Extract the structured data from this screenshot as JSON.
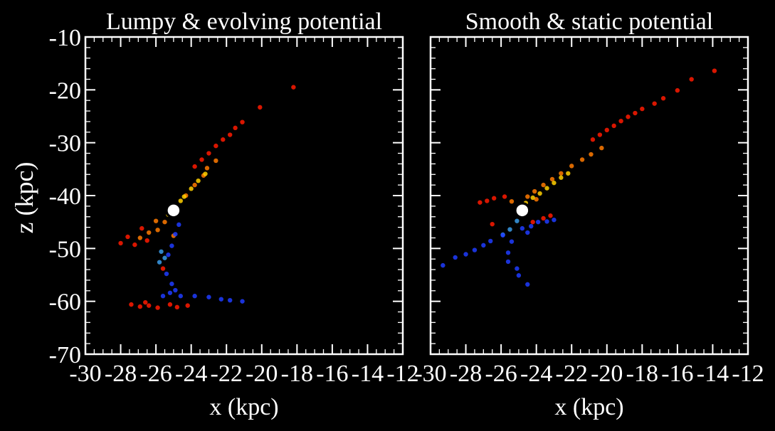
{
  "figure": {
    "background": "#000000",
    "ylabel": "z (kpc)"
  },
  "chart_data": [
    {
      "type": "scatter",
      "title": "Lumpy & evolving potential",
      "xlabel": "x (kpc)",
      "ylabel": "z (kpc)",
      "xlim": [
        -30,
        -12
      ],
      "ylim": [
        -70,
        -10
      ],
      "xticks": [
        "-30",
        "-28",
        "-26",
        "-24",
        "-22",
        "-20",
        "-18",
        "-16",
        "-14",
        "-12"
      ],
      "yticks": [
        "-10",
        "-20",
        "-30",
        "-40",
        "-50",
        "-60",
        "-70"
      ],
      "progenitor": {
        "x": -25.0,
        "z": -42.8
      },
      "series": [
        {
          "color": "#ff1a00",
          "points": [
            [
              -23.8,
              -34.5
            ],
            [
              -23.4,
              -33.2
            ],
            [
              -23.0,
              -32.0
            ],
            [
              -22.6,
              -30.6
            ],
            [
              -22.2,
              -29.4
            ],
            [
              -21.8,
              -28.5
            ],
            [
              -21.5,
              -27.2
            ],
            [
              -21.1,
              -26.1
            ],
            [
              -20.1,
              -23.3
            ],
            [
              -18.2,
              -19.5
            ],
            [
              -26.8,
              -46.2
            ],
            [
              -27.6,
              -47.8
            ],
            [
              -28.0,
              -49.0
            ],
            [
              -27.2,
              -49.3
            ],
            [
              -26.5,
              -48.5
            ],
            [
              -25.6,
              -53.8
            ],
            [
              -27.4,
              -60.6
            ],
            [
              -26.9,
              -61.0
            ],
            [
              -26.4,
              -60.8
            ],
            [
              -25.9,
              -61.2
            ],
            [
              -25.2,
              -60.6
            ],
            [
              -24.8,
              -61.1
            ],
            [
              -24.2,
              -60.8
            ],
            [
              -26.6,
              -60.2
            ]
          ]
        },
        {
          "color": "#ff7a00",
          "points": [
            [
              -25.5,
              -45.0
            ],
            [
              -25.9,
              -46.5
            ],
            [
              -26.4,
              -47.0
            ],
            [
              -24.8,
              -42.0
            ],
            [
              -24.3,
              -40.0
            ],
            [
              -23.8,
              -38.0
            ],
            [
              -23.3,
              -36.2
            ],
            [
              -23.1,
              -34.8
            ],
            [
              -22.6,
              -33.4
            ],
            [
              -26.0,
              -44.8
            ],
            [
              -25.0,
              -47.6
            ],
            [
              -26.9,
              -48.0
            ]
          ]
        },
        {
          "color": "#ffd000",
          "points": [
            [
              -24.9,
              -41.8
            ],
            [
              -24.4,
              -40.2
            ],
            [
              -24.0,
              -38.7
            ],
            [
              -23.6,
              -37.2
            ],
            [
              -23.2,
              -35.9
            ],
            [
              -25.3,
              -43.6
            ],
            [
              -24.6,
              -41.0
            ]
          ]
        },
        {
          "color": "#3a9be8",
          "points": [
            [
              -25.7,
              -50.6
            ],
            [
              -25.5,
              -51.8
            ],
            [
              -25.8,
              -52.6
            ]
          ]
        },
        {
          "color": "#1f3cff",
          "points": [
            [
              -24.7,
              -45.5
            ],
            [
              -24.9,
              -47.3
            ],
            [
              -25.1,
              -49.5
            ],
            [
              -25.3,
              -51.2
            ],
            [
              -25.4,
              -54.8
            ],
            [
              -25.1,
              -56.7
            ],
            [
              -24.9,
              -57.9
            ],
            [
              -25.6,
              -59.0
            ],
            [
              -24.6,
              -59.0
            ],
            [
              -23.8,
              -59.0
            ],
            [
              -23.0,
              -59.2
            ],
            [
              -22.3,
              -59.6
            ],
            [
              -21.8,
              -59.8
            ],
            [
              -25.2,
              -58.4
            ],
            [
              -21.1,
              -60.0
            ]
          ]
        }
      ]
    },
    {
      "type": "scatter",
      "title": "Smooth & static potential",
      "xlabel": "x (kpc)",
      "xlim": [
        -30,
        -12
      ],
      "ylim": [
        -70,
        -10
      ],
      "xticks": [
        "-30",
        "-28",
        "-26",
        "-24",
        "-22",
        "-20",
        "-18",
        "-16",
        "-14",
        "-12"
      ],
      "progenitor": {
        "x": -24.8,
        "z": -42.8
      },
      "series": [
        {
          "color": "#ff1a00",
          "points": [
            [
              -20.8,
              -29.4
            ],
            [
              -20.4,
              -28.5
            ],
            [
              -20.0,
              -27.6
            ],
            [
              -19.6,
              -26.8
            ],
            [
              -19.2,
              -25.9
            ],
            [
              -18.8,
              -25.1
            ],
            [
              -18.4,
              -24.4
            ],
            [
              -18.0,
              -23.6
            ],
            [
              -17.3,
              -22.6
            ],
            [
              -16.8,
              -21.6
            ],
            [
              -16.0,
              -20.1
            ],
            [
              -15.2,
              -18.0
            ],
            [
              -13.9,
              -16.4
            ],
            [
              -25.8,
              -40.2
            ],
            [
              -26.4,
              -40.5
            ],
            [
              -26.8,
              -41.0
            ],
            [
              -27.2,
              -41.3
            ],
            [
              -26.5,
              -45.4
            ],
            [
              -24.2,
              -45.0
            ],
            [
              -23.6,
              -44.3
            ],
            [
              -23.2,
              -43.8
            ]
          ]
        },
        {
          "color": "#ff7a00",
          "points": [
            [
              -24.5,
              -40.2
            ],
            [
              -24.1,
              -39.2
            ],
            [
              -23.6,
              -38.0
            ],
            [
              -23.1,
              -36.9
            ],
            [
              -22.6,
              -35.8
            ],
            [
              -22.0,
              -34.4
            ],
            [
              -21.4,
              -33.2
            ],
            [
              -20.9,
              -32.2
            ],
            [
              -20.3,
              -31.0
            ],
            [
              -25.4,
              -41.1
            ],
            [
              -24.0,
              -40.7
            ]
          ]
        },
        {
          "color": "#ffd000",
          "points": [
            [
              -24.6,
              -41.4
            ],
            [
              -24.2,
              -40.4
            ],
            [
              -23.8,
              -39.6
            ],
            [
              -23.4,
              -38.6
            ],
            [
              -23.0,
              -37.6
            ],
            [
              -22.6,
              -36.6
            ],
            [
              -22.2,
              -35.8
            ]
          ]
        },
        {
          "color": "#3a9be8",
          "points": [
            [
              -25.1,
              -44.8
            ],
            [
              -25.5,
              -46.4
            ],
            [
              -25.9,
              -47.4
            ]
          ]
        },
        {
          "color": "#1f3cff",
          "points": [
            [
              -25.9,
              -47.5
            ],
            [
              -26.6,
              -48.6
            ],
            [
              -27.0,
              -49.4
            ],
            [
              -27.5,
              -50.3
            ],
            [
              -28.0,
              -51.1
            ],
            [
              -28.6,
              -51.7
            ],
            [
              -29.3,
              -53.2
            ],
            [
              -25.4,
              -48.7
            ],
            [
              -25.6,
              -50.8
            ],
            [
              -25.6,
              -52.5
            ],
            [
              -25.1,
              -53.8
            ],
            [
              -25.0,
              -55.1
            ],
            [
              -24.5,
              -56.8
            ],
            [
              -24.8,
              -46.2
            ],
            [
              -24.3,
              -45.8
            ],
            [
              -23.9,
              -45.0
            ],
            [
              -23.4,
              -44.9
            ],
            [
              -23.0,
              -44.6
            ],
            [
              -24.5,
              -47.0
            ]
          ]
        }
      ]
    }
  ]
}
